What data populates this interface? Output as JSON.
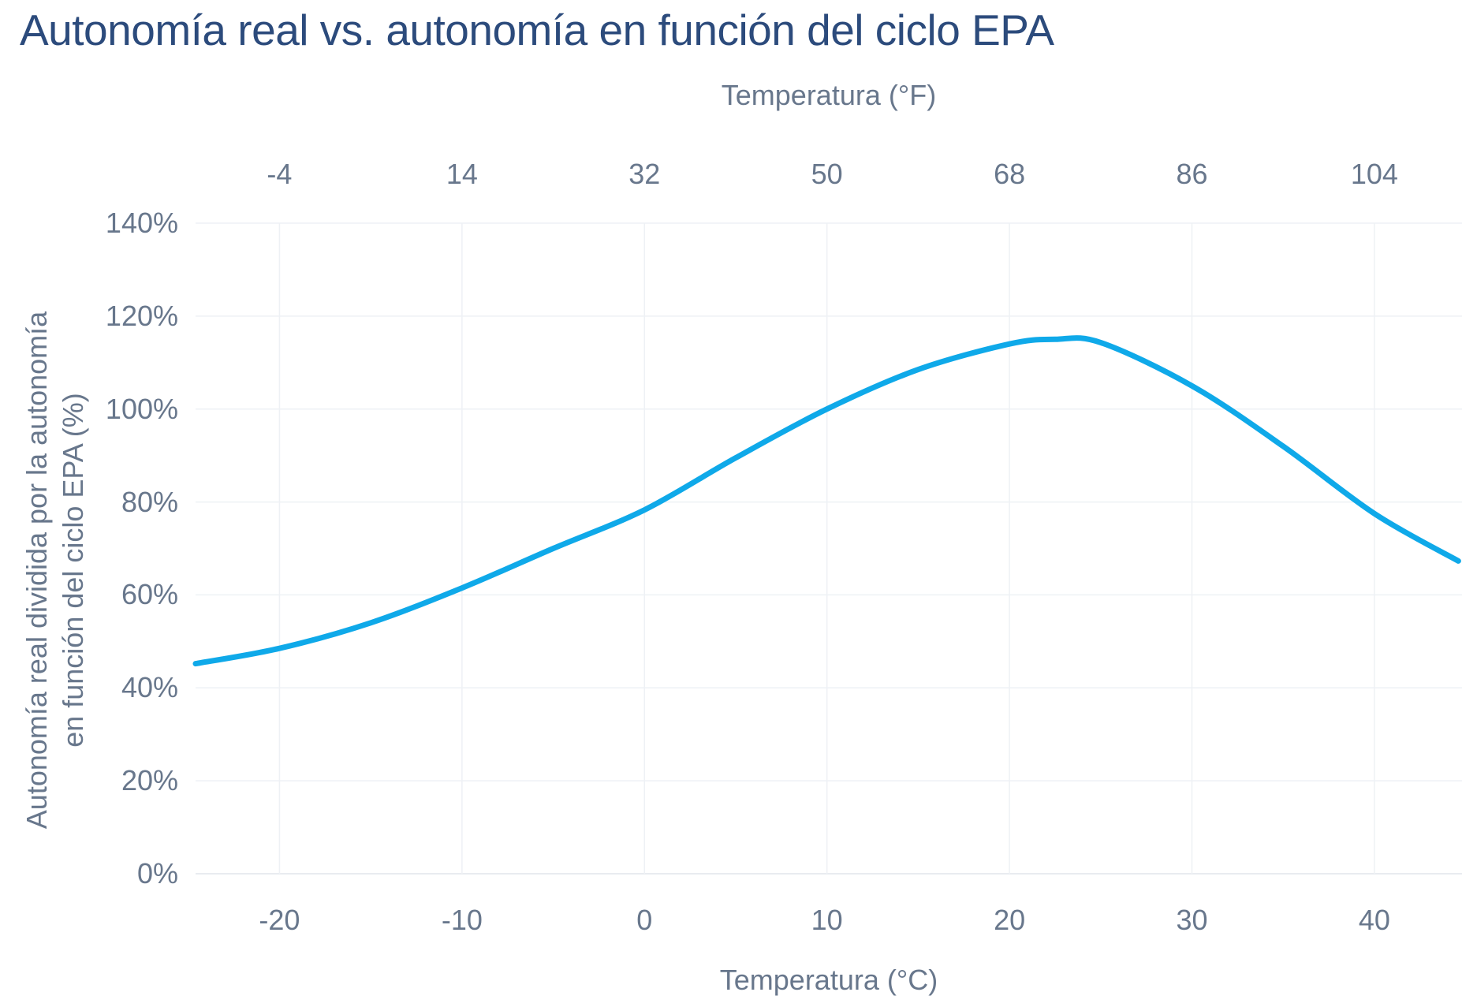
{
  "title": "Autonomía real vs. autonomía en función del ciclo EPA",
  "colors": {
    "title": "#2C4B7C",
    "axis_text": "#68778C",
    "line": "#0FA9E9",
    "grid": "#EEF1F5",
    "axis_line": "#E2E6EC",
    "background": "#FFFFFF"
  },
  "chart_data": {
    "type": "line",
    "title": "Autonomía real vs. autonomía en función del ciclo EPA",
    "grid": true,
    "legend": "none",
    "xlabel_top": "Temperatura (°F)",
    "xlabel_bottom": "Temperatura (°C)",
    "ylabel_line1": "Autonomía real dividida por la autonomía",
    "ylabel_line2": "en función del ciclo EPA (%)",
    "xlim_celsius": [
      -24.6,
      44.8
    ],
    "ylim_percent": [
      0,
      140
    ],
    "x_ticks": [
      {
        "c": -20,
        "label_f": "-4",
        "label_c": "-20"
      },
      {
        "c": -10,
        "label_f": "14",
        "label_c": "-10"
      },
      {
        "c": 0,
        "label_f": "32",
        "label_c": "0"
      },
      {
        "c": 10,
        "label_f": "50",
        "label_c": "10"
      },
      {
        "c": 20,
        "label_f": "68",
        "label_c": "20"
      },
      {
        "c": 30,
        "label_f": "86",
        "label_c": "30"
      },
      {
        "c": 40,
        "label_f": "104",
        "label_c": "40"
      }
    ],
    "y_ticks": [
      {
        "v": 0,
        "label": "0%"
      },
      {
        "v": 20,
        "label": "20%"
      },
      {
        "v": 40,
        "label": "40%"
      },
      {
        "v": 60,
        "label": "60%"
      },
      {
        "v": 80,
        "label": "80%"
      },
      {
        "v": 100,
        "label": "100%"
      },
      {
        "v": 120,
        "label": "120%"
      },
      {
        "v": 140,
        "label": "140%"
      }
    ],
    "series": [
      {
        "name": "Autonomía real dividida por la autonomía EPA (%)",
        "x_celsius": [
          -24.6,
          -20,
          -15,
          -10,
          -5,
          0,
          5,
          10,
          15,
          20,
          22.5,
          25,
          30,
          35,
          40,
          44.6
        ],
        "y_percent": [
          45.2,
          48.5,
          54,
          61.5,
          70,
          78.3,
          89.5,
          100,
          108.5,
          114,
          115,
          114.3,
          105,
          92,
          77.5,
          67.3
        ]
      }
    ]
  }
}
